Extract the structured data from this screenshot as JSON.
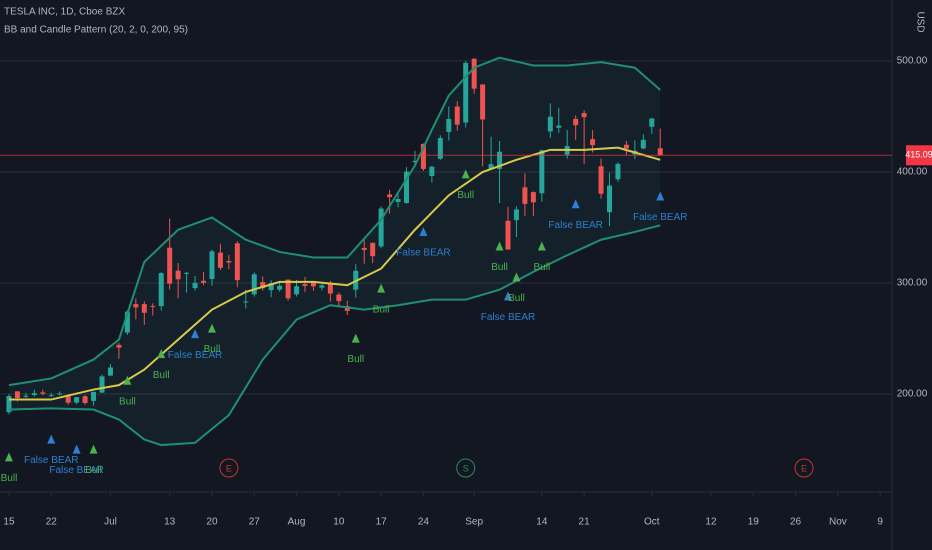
{
  "chart_data": {
    "type": "candlestick",
    "title": "TESLA INC, 1D, Cboe BZX",
    "subtitle": "BB and Candle Pattern (20, 2, 0, 200, 95)",
    "currency": "USD",
    "up_color": "#26a69a",
    "down_color": "#ef5350",
    "open": [
      183.6,
      202.4,
      197.5,
      199.1,
      201.4,
      198.6,
      199.6,
      198.0,
      192.3,
      198.0,
      193.8,
      201.3,
      216.6,
      244.3,
      255.3,
      281.0,
      281.0,
      279.4,
      279.2,
      331.8,
      311.2,
      308.6,
      295.4,
      302.0,
      303.6,
      327.4,
      319.8,
      335.8,
      283.2,
      289.8,
      300.8,
      293.6,
      294.0,
      303.0,
      289.8,
      299.0,
      300.6,
      295.8,
      299.9,
      289.6,
      279.2,
      294.0,
      331.6,
      336.2,
      333.0,
      379.8,
      373.0,
      372.1,
      408.9,
      425.3,
      396.4,
      412.0,
      436.1,
      459.0,
      444.6,
      502.1,
      478.9,
      402.8,
      402.8,
      356.0,
      356.6,
      386.2,
      381.9,
      380.9,
      436.6,
      439.9,
      415.6,
      447.9,
      453.1,
      429.6,
      405.2,
      363.8,
      393.5,
      424.6,
      416.0,
      421.3,
      440.8,
      421.4
    ],
    "high": [
      199.8,
      202.6,
      201.0,
      203.8,
      203.9,
      201.1,
      202.4,
      199.8,
      197.2,
      199.0,
      202.0,
      217.5,
      227.1,
      246.1,
      275.8,
      285.9,
      283.5,
      281.7,
      309.8,
      358.0,
      318.0,
      310.0,
      306.3,
      310.0,
      330.0,
      335.0,
      325.3,
      337.8,
      294.0,
      309.6,
      306.0,
      302.5,
      301.9,
      303.4,
      302.9,
      305.5,
      301.0,
      299.9,
      302.0,
      291.5,
      284.0,
      317.0,
      339.6,
      336.6,
      369.2,
      384.0,
      382.2,
      404.4,
      419.1,
      425.8,
      405.6,
      433.2,
      459.1,
      463.7,
      500.1,
      502.5,
      479.0,
      431.8,
      428.0,
      368.7,
      369.0,
      398.9,
      382.5,
      420.0,
      461.9,
      457.8,
      437.8,
      451.0,
      455.7,
      437.8,
      412.2,
      399.5,
      408.7,
      428.1,
      428.5,
      433.9,
      448.9,
      439.1
    ],
    "low": [
      181.7,
      193.2,
      196.5,
      197.6,
      198.8,
      197.4,
      198.9,
      190.3,
      190.9,
      190.2,
      189.7,
      200.8,
      216.1,
      231.8,
      253.2,
      267.3,
      262.3,
      270.7,
      275.2,
      294.2,
      286.2,
      291.4,
      293.2,
      298.1,
      297.6,
      311.6,
      312.4,
      296.2,
      277.0,
      287.8,
      293.2,
      287.2,
      292.2,
      284.2,
      287.8,
      292.0,
      293.0,
      293.3,
      283.3,
      277.9,
      271.2,
      287.0,
      317.4,
      318.0,
      331.2,
      362.4,
      368.2,
      371.4,
      405.0,
      401.0,
      390.6,
      411.0,
      428.5,
      437.3,
      440.1,
      470.5,
      405.1,
      402.0,
      372.0,
      329.9,
      341.5,
      360.6,
      360.5,
      373.3,
      430.7,
      435.3,
      412.1,
      428.8,
      407.1,
      417.6,
      375.9,
      351.3,
      391.3,
      415.6,
      411.6,
      420.5,
      434.4,
      415.0
    ],
    "close": [
      198.2,
      196.4,
      198.4,
      200.8,
      200.2,
      198.9,
      200.4,
      192.2,
      197.2,
      191.9,
      201.9,
      215.9,
      223.9,
      241.7,
      274.3,
      278.0,
      273.2,
      278.9,
      308.9,
      299.4,
      303.4,
      309.2,
      300.1,
      300.2,
      328.6,
      313.7,
      318.5,
      302.6,
      283.4,
      307.9,
      295.3,
      299.8,
      297.5,
      286.2,
      297.0,
      297.4,
      297.0,
      297.9,
      290.5,
      283.7,
      274.9,
      311.0,
      329.8,
      324.2,
      367.1,
      377.4,
      375.7,
      400.4,
      410.0,
      402.8,
      404.7,
      430.6,
      447.8,
      442.7,
      498.3,
      475.1,
      447.4,
      407.0,
      418.3,
      330.2,
      366.3,
      371.3,
      372.7,
      419.6,
      449.8,
      441.8,
      423.4,
      442.2,
      449.4,
      424.2,
      380.4,
      387.8,
      407.3,
      421.2,
      419.1,
      429.0,
      448.2,
      415.09
    ],
    "overlays": [
      {
        "color": "#1f8f74",
        "x": [
          0,
          5,
          10,
          13,
          16,
          20,
          24,
          28,
          32,
          36,
          40,
          44,
          48,
          50,
          52,
          55,
          58,
          62,
          66,
          70,
          74,
          77
        ],
        "values": [
          208,
          214,
          231,
          249,
          319,
          348,
          359,
          339,
          328,
          323,
          323,
          357,
          406,
          438,
          469,
          494,
          503,
          496,
          496,
          499,
          494,
          474
        ]
      },
      {
        "color": "#1f8f74",
        "x": [
          0,
          5,
          10,
          13,
          16,
          18,
          22,
          26,
          30,
          34,
          38,
          42,
          46,
          50,
          54,
          58,
          62,
          66,
          70,
          74,
          77
        ],
        "values": [
          186,
          187,
          186,
          177,
          159,
          154,
          156,
          181,
          231,
          267,
          280,
          276,
          280,
          285,
          285,
          294,
          310,
          325,
          339,
          346,
          352
        ]
      },
      {
        "color": "#d8c94a",
        "x": [
          0,
          5,
          10,
          13,
          16,
          20,
          24,
          28,
          32,
          36,
          40,
          44,
          48,
          52,
          56,
          60,
          64,
          68,
          72,
          77
        ],
        "values": [
          195,
          195,
          204,
          208,
          222,
          249,
          276,
          292,
          301,
          301,
          298,
          313,
          348,
          379,
          400,
          411,
          420,
          420,
          422,
          411
        ]
      }
    ],
    "annotations": [
      {
        "text": "Bull",
        "x": 0,
        "y": 124,
        "color": "#4caf50"
      },
      {
        "text": "False BEAR",
        "x": 5,
        "y": 140,
        "color": "#2f7fd0"
      },
      {
        "text": "False BEAR",
        "x": 8,
        "y": 131,
        "color": "#2f7fd0"
      },
      {
        "text": "Bull",
        "x": 10,
        "y": 131,
        "color": "#4caf50"
      },
      {
        "text": "Bull",
        "x": 14,
        "y": 193,
        "color": "#4caf50"
      },
      {
        "text": "Bull",
        "x": 18,
        "y": 217,
        "color": "#4caf50"
      },
      {
        "text": "False BEAR",
        "x": 22,
        "y": 235,
        "color": "#2f7fd0"
      },
      {
        "text": "Bull",
        "x": 24,
        "y": 240,
        "color": "#4caf50"
      },
      {
        "text": "Bull",
        "x": 41,
        "y": 231,
        "color": "#4caf50"
      },
      {
        "text": "Bull",
        "x": 44,
        "y": 276,
        "color": "#4caf50"
      },
      {
        "text": "False BEAR",
        "x": 49,
        "y": 327,
        "color": "#2f7fd0"
      },
      {
        "text": "Bull",
        "x": 54,
        "y": 379,
        "color": "#4caf50"
      },
      {
        "text": "Bull",
        "x": 58,
        "y": 314,
        "color": "#4caf50"
      },
      {
        "text": "False BEAR",
        "x": 59,
        "y": 269,
        "color": "#2f7fd0"
      },
      {
        "text": "Bull",
        "x": 60,
        "y": 286,
        "color": "#4caf50"
      },
      {
        "text": "Bull",
        "x": 63,
        "y": 314,
        "color": "#4caf50"
      },
      {
        "text": "False BEAR",
        "x": 67,
        "y": 352,
        "color": "#2f7fd0"
      },
      {
        "text": "False BEAR",
        "x": 77,
        "y": 359,
        "color": "#2f7fd0"
      }
    ],
    "events": [
      {
        "label": "E",
        "x": 26,
        "color": "#c0392b"
      },
      {
        "label": "S",
        "x": 54,
        "color": "#2e8b57"
      },
      {
        "label": "E",
        "x": 94,
        "color": "#c0392b"
      }
    ],
    "xlim": [
      -1.06,
      104.4
    ],
    "ylim": [
      111.7,
      555
    ],
    "xticks": [
      {
        "value": 0,
        "label": "15"
      },
      {
        "value": 5,
        "label": "22"
      },
      {
        "value": 12,
        "label": "Jul"
      },
      {
        "value": 19,
        "label": "13"
      },
      {
        "value": 24,
        "label": "20"
      },
      {
        "value": 29,
        "label": "27"
      },
      {
        "value": 34,
        "label": "Aug"
      },
      {
        "value": 39,
        "label": "10"
      },
      {
        "value": 44,
        "label": "17"
      },
      {
        "value": 49,
        "label": "24"
      },
      {
        "value": 55,
        "label": "Sep"
      },
      {
        "value": 63,
        "label": "14"
      },
      {
        "value": 68,
        "label": "21"
      },
      {
        "value": 76,
        "label": "Oct"
      },
      {
        "value": 83,
        "label": "12"
      },
      {
        "value": 88,
        "label": "19"
      },
      {
        "value": 93,
        "label": "26"
      },
      {
        "value": 98,
        "label": "Nov"
      },
      {
        "value": 103,
        "label": "9"
      }
    ],
    "yticks": [
      {
        "value": 200,
        "label": "200.00"
      },
      {
        "value": 300,
        "label": "300.00"
      },
      {
        "value": 400,
        "label": "400.00"
      },
      {
        "value": 500,
        "label": "500.00"
      }
    ],
    "grid": true,
    "last_price_color": "#f23645"
  }
}
